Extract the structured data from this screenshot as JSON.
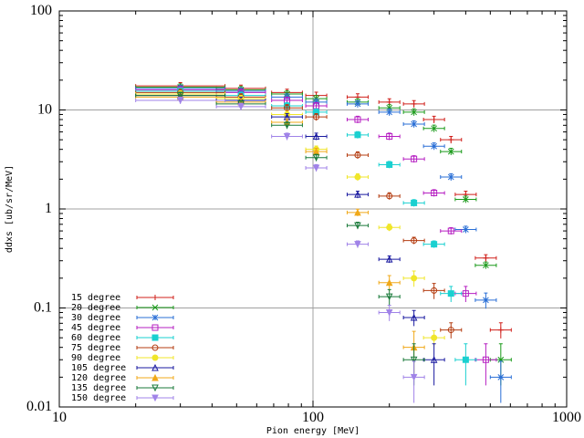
{
  "chart_data": {
    "type": "scatter",
    "title": "",
    "xlabel": "Pion energy [MeV]",
    "ylabel": "ddxs [ub/sr/MeV]",
    "xscale": "log",
    "yscale": "log",
    "xlim": [
      10,
      1000
    ],
    "ylim": [
      0.01,
      100
    ],
    "x_ticks": [
      "10",
      "100",
      "1000"
    ],
    "y_ticks": [
      "0.01",
      "0.1",
      "1",
      "10",
      "100"
    ],
    "grid": true,
    "legend_position": "bottom-left",
    "series": [
      {
        "name": "15 degree",
        "color": "#d0201b",
        "marker": "plus",
        "points": [
          [
            30,
            17.5
          ],
          [
            52,
            16.5
          ],
          [
            79,
            15
          ],
          [
            103,
            14
          ],
          [
            150,
            13.5
          ],
          [
            200,
            12
          ],
          [
            250,
            11.5
          ],
          [
            300,
            8
          ],
          [
            350,
            5
          ],
          [
            400,
            1.4
          ],
          [
            480,
            0.32
          ],
          [
            550,
            0.06
          ]
        ]
      },
      {
        "name": "20 degree",
        "color": "#1a9a1a",
        "marker": "cross",
        "points": [
          [
            30,
            17
          ],
          [
            52,
            16
          ],
          [
            79,
            14.5
          ],
          [
            103,
            13
          ],
          [
            150,
            12
          ],
          [
            200,
            10.5
          ],
          [
            250,
            9.5
          ],
          [
            300,
            6.5
          ],
          [
            350,
            3.8
          ],
          [
            400,
            1.25
          ],
          [
            480,
            0.27
          ],
          [
            550,
            0.03
          ]
        ]
      },
      {
        "name": "30 degree",
        "color": "#2a6fd6",
        "marker": "star",
        "points": [
          [
            30,
            16.5
          ],
          [
            52,
            15.5
          ],
          [
            79,
            13.5
          ],
          [
            103,
            12
          ],
          [
            150,
            11.5
          ],
          [
            200,
            9.5
          ],
          [
            250,
            7.2
          ],
          [
            300,
            4.3
          ],
          [
            350,
            2.1
          ],
          [
            400,
            0.62
          ],
          [
            480,
            0.12
          ],
          [
            550,
            0.02
          ]
        ]
      },
      {
        "name": "45 degree",
        "color": "#b61fc2",
        "marker": "square",
        "points": [
          [
            30,
            16
          ],
          [
            52,
            15
          ],
          [
            79,
            12.5
          ],
          [
            103,
            11
          ],
          [
            150,
            8
          ],
          [
            200,
            5.4
          ],
          [
            250,
            3.2
          ],
          [
            300,
            1.45
          ],
          [
            350,
            0.6
          ],
          [
            400,
            0.14
          ],
          [
            480,
            0.03
          ]
        ]
      },
      {
        "name": "60 degree",
        "color": "#1ad0d0",
        "marker": "filled-square",
        "points": [
          [
            30,
            15.5
          ],
          [
            52,
            14
          ],
          [
            79,
            11
          ],
          [
            103,
            9.5
          ],
          [
            150,
            5.6
          ],
          [
            200,
            2.8
          ],
          [
            250,
            1.15
          ],
          [
            300,
            0.44
          ],
          [
            350,
            0.14
          ],
          [
            400,
            0.03
          ]
        ]
      },
      {
        "name": "75 degree",
        "color": "#b43c10",
        "marker": "circle",
        "points": [
          [
            30,
            15
          ],
          [
            52,
            13.5
          ],
          [
            79,
            10.5
          ],
          [
            103,
            8.5
          ],
          [
            150,
            3.5
          ],
          [
            200,
            1.35
          ],
          [
            250,
            0.48
          ],
          [
            300,
            0.15
          ],
          [
            350,
            0.06
          ]
        ]
      },
      {
        "name": "90 degree",
        "color": "#f0e62a",
        "marker": "filled-circle",
        "points": [
          [
            30,
            14.5
          ],
          [
            52,
            13
          ],
          [
            79,
            9
          ],
          [
            103,
            4
          ],
          [
            150,
            2.1
          ],
          [
            200,
            0.65
          ],
          [
            250,
            0.2
          ],
          [
            300,
            0.05
          ]
        ]
      },
      {
        "name": "105 degree",
        "color": "#1a1aa0",
        "marker": "triangle",
        "points": [
          [
            30,
            14
          ],
          [
            52,
            12.5
          ],
          [
            79,
            8.5
          ],
          [
            103,
            5.4
          ],
          [
            150,
            1.4
          ],
          [
            200,
            0.31
          ],
          [
            250,
            0.08
          ],
          [
            300,
            0.03
          ]
        ]
      },
      {
        "name": "120 degree",
        "color": "#f0a818",
        "marker": "filled-triangle",
        "points": [
          [
            30,
            13.5
          ],
          [
            52,
            12
          ],
          [
            79,
            7.5
          ],
          [
            103,
            3.8
          ],
          [
            150,
            0.92
          ],
          [
            200,
            0.18
          ],
          [
            250,
            0.04
          ]
        ]
      },
      {
        "name": "135 degree",
        "color": "#1a7a3a",
        "marker": "inverted-triangle",
        "points": [
          [
            30,
            14
          ],
          [
            52,
            11.5
          ],
          [
            79,
            7
          ],
          [
            103,
            3.3
          ],
          [
            150,
            0.68
          ],
          [
            200,
            0.13
          ],
          [
            250,
            0.03
          ]
        ]
      },
      {
        "name": "150 degree",
        "color": "#a083e8",
        "marker": "filled-inverted-triangle",
        "points": [
          [
            30,
            12.5
          ],
          [
            52,
            10.8
          ],
          [
            79,
            5.4
          ],
          [
            103,
            2.6
          ],
          [
            150,
            0.44
          ],
          [
            200,
            0.09
          ],
          [
            250,
            0.02
          ]
        ]
      }
    ]
  }
}
